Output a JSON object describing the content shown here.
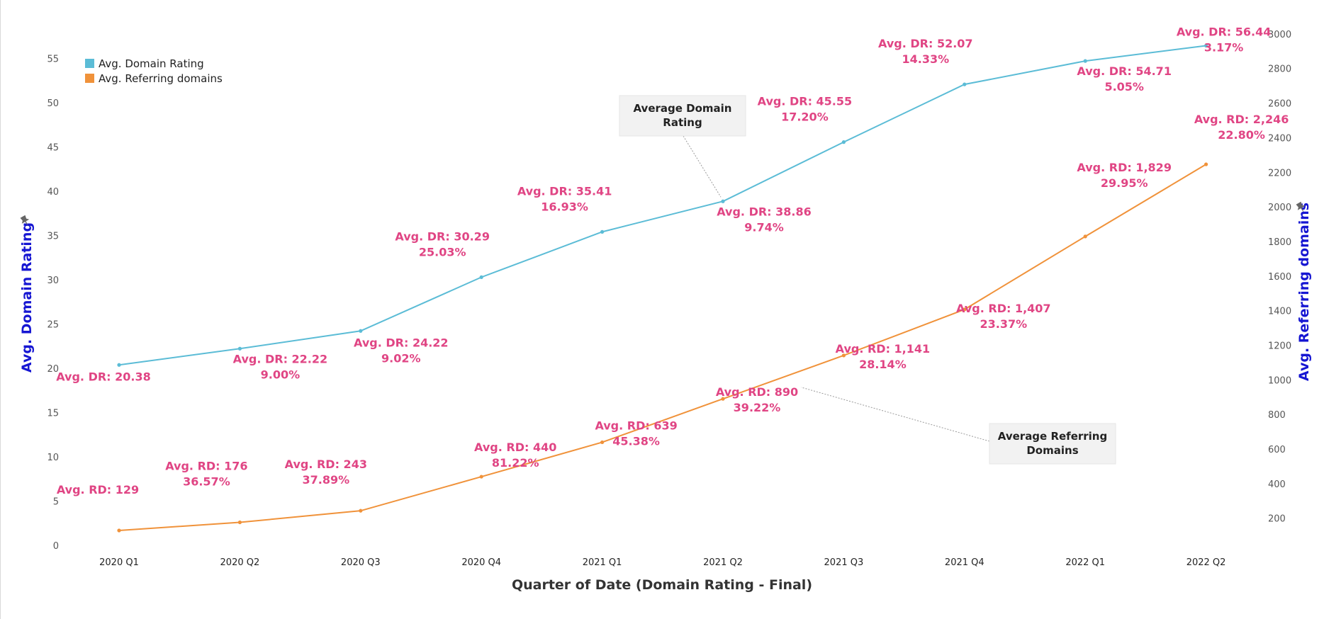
{
  "colors": {
    "domain_rating": "#5bbcd6",
    "referring_domains": "#f0923a",
    "labels": "#e04584",
    "axis_titles": "#1616d2"
  },
  "icons": {
    "left_axis_pin": "pin-icon",
    "right_axis_pin": "pin-icon"
  },
  "chart_data": {
    "type": "line",
    "title": "",
    "xlabel": "Quarter of Date (Domain Rating - Final)",
    "ylabel_left": "Avg. Domain Rating",
    "ylabel_right": "Avg. Referring domains",
    "categories": [
      "2020 Q1",
      "2020 Q2",
      "2020 Q3",
      "2020 Q4",
      "2021 Q1",
      "2021 Q2",
      "2021 Q3",
      "2021 Q4",
      "2022 Q1",
      "2022 Q2"
    ],
    "ylim_left": [
      0,
      57
    ],
    "yticks_left": [
      0,
      5,
      10,
      15,
      20,
      25,
      30,
      35,
      40,
      45,
      50,
      55
    ],
    "ylim_right": [
      0,
      3050
    ],
    "yticks_right": [
      200,
      400,
      600,
      800,
      1000,
      1200,
      1400,
      1600,
      1800,
      2000,
      2200,
      2400,
      2600,
      2800,
      3000
    ],
    "legend_position": "top-left",
    "grid": false,
    "series": [
      {
        "name": "Avg. Domain Rating",
        "axis": "left",
        "values": [
          20.38,
          22.22,
          24.22,
          30.29,
          35.41,
          38.86,
          45.55,
          52.07,
          54.71,
          56.44
        ],
        "labels": [
          [
            "Avg. DR: 20.38"
          ],
          [
            "Avg. DR: 22.22",
            "9.00%"
          ],
          [
            "Avg. DR: 24.22",
            "9.02%"
          ],
          [
            "Avg. DR: 30.29",
            "25.03%"
          ],
          [
            "Avg. DR: 35.41",
            "16.93%"
          ],
          [
            "Avg. DR: 38.86",
            "9.74%"
          ],
          [
            "Avg. DR: 45.55",
            "17.20%"
          ],
          [
            "Avg. DR: 52.07",
            "14.33%"
          ],
          [
            "Avg. DR: 54.71",
            "5.05%"
          ],
          [
            "Avg. DR: 56.44",
            "3.17%"
          ]
        ]
      },
      {
        "name": "Avg. Referring domains",
        "axis": "right",
        "values": [
          129,
          176,
          243,
          440,
          639,
          890,
          1141,
          1407,
          1829,
          2246
        ],
        "labels": [
          [
            "Avg. RD: 129"
          ],
          [
            "Avg. RD: 176",
            "36.57%"
          ],
          [
            "Avg. RD: 243",
            "37.89%"
          ],
          [
            "Avg. RD: 440",
            "81.22%"
          ],
          [
            "Avg. RD: 639",
            "45.38%"
          ],
          [
            "Avg. RD: 890",
            "39.22%"
          ],
          [
            "Avg. RD: 1,141",
            "28.14%"
          ],
          [
            "Avg. RD: 1,407",
            "23.37%"
          ],
          [
            "Avg. RD: 1,829",
            "29.95%"
          ],
          [
            "Avg. RD: 2,246",
            "22.80%"
          ]
        ]
      }
    ],
    "annotations": [
      {
        "series": 0,
        "point": 5,
        "lines": [
          "Average Domain",
          "Rating"
        ]
      },
      {
        "series": 1,
        "point": 6,
        "lines": [
          "Average Referring",
          "Domains"
        ]
      }
    ]
  }
}
